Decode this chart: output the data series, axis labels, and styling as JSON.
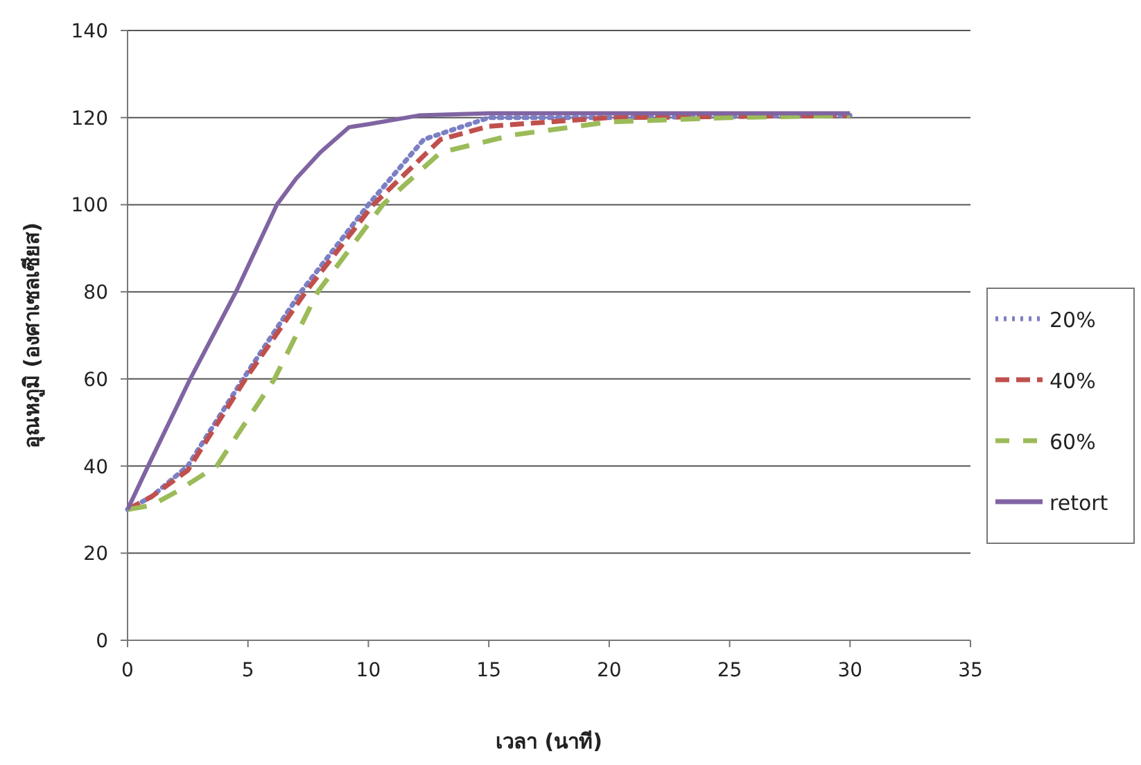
{
  "chart_data": {
    "type": "line",
    "xlabel": "เวลา (นาที)",
    "ylabel": "อุณหภูมิ (องศาเซลเซียส)",
    "xlim": [
      0,
      35
    ],
    "xticks": [
      0,
      5,
      10,
      15,
      20,
      25,
      30,
      35
    ],
    "ylim": [
      0,
      140
    ],
    "yticks": [
      0,
      20,
      40,
      60,
      80,
      100,
      120,
      140
    ],
    "grid": "y",
    "legend": "right",
    "series": [
      {
        "name": "20%",
        "color": "#7b7fc4",
        "line_style": "dotted",
        "x": [
          0,
          1,
          2.5,
          4.8,
          7.2,
          10,
          12.3,
          15,
          20,
          30
        ],
        "values": [
          30,
          33,
          40,
          60,
          80,
          100,
          115,
          120,
          120,
          120.5
        ]
      },
      {
        "name": "40%",
        "color": "#c0504d",
        "line_style": "dashed",
        "x": [
          0,
          1,
          2.5,
          4.9,
          7.4,
          10.2,
          13,
          15,
          20,
          30
        ],
        "values": [
          30,
          33,
          39,
          60,
          80,
          100,
          115,
          118,
          120,
          120.5
        ]
      },
      {
        "name": "60%",
        "color": "#9bbb59",
        "line_style": "dashed",
        "x": [
          0,
          1,
          2,
          3.7,
          6.1,
          7.9,
          10.6,
          13,
          16,
          20,
          25,
          30
        ],
        "values": [
          30,
          31,
          34,
          40,
          60,
          80,
          100,
          112,
          116,
          119,
          120,
          120.5
        ]
      },
      {
        "name": "retort",
        "color": "#8064a2",
        "line_style": "solid",
        "x": [
          0,
          0.85,
          2.6,
          4.5,
          6.2,
          7,
          8,
          9.2,
          10,
          12.1,
          15,
          20,
          30
        ],
        "values": [
          30,
          40,
          60,
          80,
          100,
          106,
          112,
          117.8,
          118.5,
          120.5,
          121,
          121,
          121
        ]
      }
    ]
  }
}
